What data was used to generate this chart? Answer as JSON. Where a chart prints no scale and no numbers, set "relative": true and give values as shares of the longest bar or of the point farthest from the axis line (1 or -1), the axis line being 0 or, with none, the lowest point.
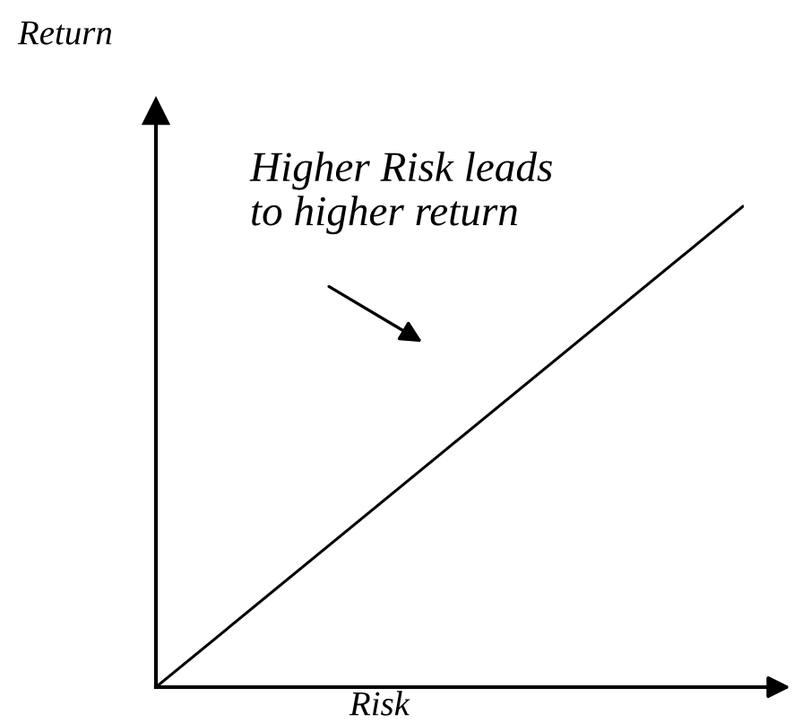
{
  "chart_data": {
    "type": "line",
    "relative": true,
    "xlabel": "Risk",
    "ylabel": "Return",
    "categories": [
      null,
      null
    ],
    "series": [
      {
        "color": "#000000",
        "values": [
          0,
          1
        ]
      }
    ],
    "annotations": [
      "Higher Risk leads\nto higher return"
    ]
  }
}
